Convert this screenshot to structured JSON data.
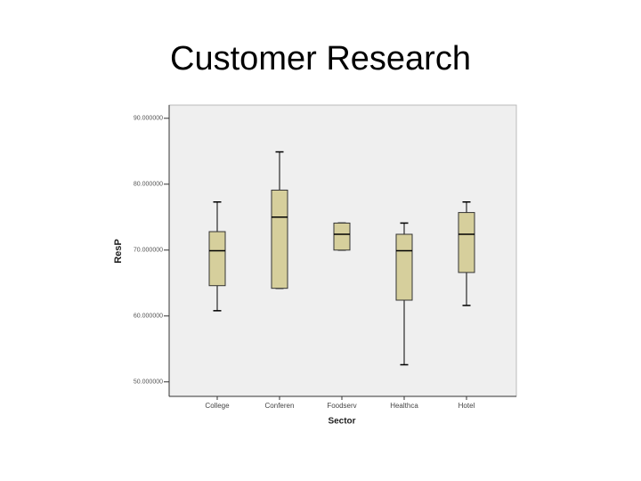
{
  "chart_data": {
    "type": "boxplot",
    "title": "Customer Research",
    "x_label": "Sector",
    "y_label": "ResP",
    "categories": [
      "College",
      "Conferen",
      "Foodserv",
      "Healthca",
      "Hotel"
    ],
    "series": [
      {
        "color": "#d6cf9c",
        "min": [
          60.8,
          64.2,
          70.0,
          52.6,
          61.6
        ],
        "q1": [
          64.6,
          64.2,
          70.0,
          62.4,
          66.6
        ],
        "median": [
          69.9,
          75.0,
          72.4,
          69.9,
          72.4
        ],
        "q3": [
          72.8,
          79.1,
          74.1,
          72.4,
          75.7
        ],
        "max": [
          77.3,
          84.9,
          74.1,
          74.1,
          77.3
        ]
      }
    ],
    "ylim": [
      47.8,
      92
    ],
    "yticks": [
      {
        "value": 50,
        "label": "50.000000"
      },
      {
        "value": 60,
        "label": "60.000000"
      },
      {
        "value": 70,
        "label": "70.000000"
      },
      {
        "value": 80,
        "label": "80.000000"
      },
      {
        "value": 90,
        "label": "90.000000"
      }
    ]
  }
}
